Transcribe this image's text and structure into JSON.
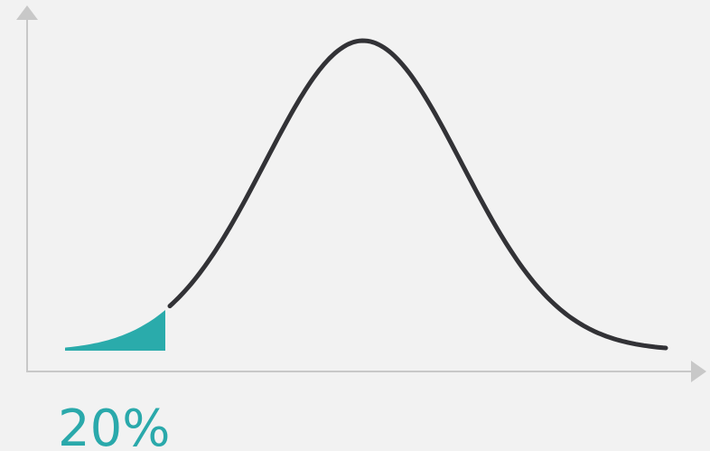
{
  "shaded_area": {
    "label": "20%"
  }
}
